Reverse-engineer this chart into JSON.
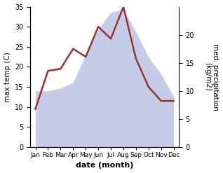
{
  "months": [
    "Jan",
    "Feb",
    "Mar",
    "Apr",
    "May",
    "Jun",
    "Jul",
    "Aug",
    "Sep",
    "Oct",
    "Nov",
    "Dec"
  ],
  "month_positions": [
    0,
    1,
    2,
    3,
    4,
    5,
    6,
    7,
    8,
    9,
    10,
    11
  ],
  "temperature": [
    9.5,
    19.0,
    19.5,
    24.5,
    22.5,
    30.0,
    27.0,
    35.0,
    22.0,
    15.0,
    11.5,
    11.5
  ],
  "precipitation": [
    10.0,
    10.0,
    10.5,
    11.5,
    16.5,
    21.0,
    24.0,
    24.5,
    20.5,
    16.0,
    13.0,
    9.0
  ],
  "temp_color": "#993333",
  "precip_fill_color": "#c5cce8",
  "temp_ylim": [
    0,
    35
  ],
  "temp_yticks": [
    0,
    5,
    10,
    15,
    20,
    25,
    30,
    35
  ],
  "precip_ylim": [
    0,
    25
  ],
  "precip_yticks": [
    0,
    5,
    10,
    15,
    20
  ],
  "precip_yticklabels": [
    "0",
    "5",
    "10",
    "15",
    "20"
  ],
  "xlabel": "date (month)",
  "ylabel_left": "max temp (C)",
  "ylabel_right": "med. precipitation\n(kg/m2)",
  "background_color": "#ffffff"
}
